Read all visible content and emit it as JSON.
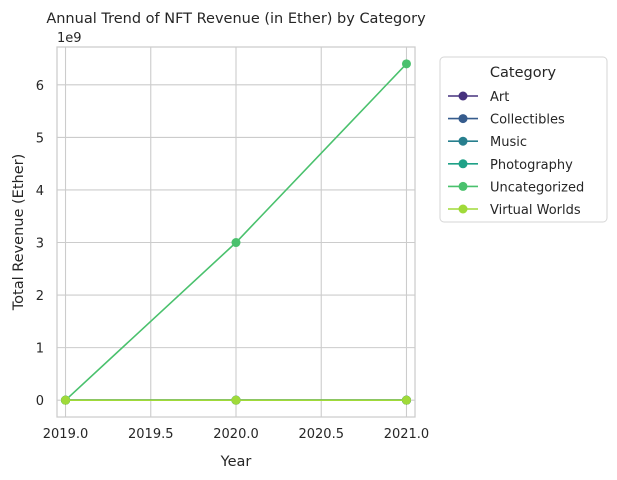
{
  "chart_data": {
    "type": "line",
    "title": "Annual Trend of NFT Revenue (in Ether) by Category",
    "xlabel": "Year",
    "ylabel": "Total Revenue (Ether)",
    "y_offset_label": "1e9",
    "y_multiplier": 1000000000,
    "x": [
      2019,
      2020,
      2021
    ],
    "xlim": [
      2018.95,
      2021.05
    ],
    "ylim": [
      -320000000,
      6720000000
    ],
    "x_ticks": [
      2019.0,
      2019.5,
      2020.0,
      2020.5,
      2021.0
    ],
    "x_tick_labels": [
      "2019.0",
      "2019.5",
      "2020.0",
      "2020.5",
      "2021.0"
    ],
    "y_ticks": [
      0,
      1000000000,
      2000000000,
      3000000000,
      4000000000,
      5000000000,
      6000000000
    ],
    "y_tick_labels": [
      "0",
      "1",
      "2",
      "3",
      "4",
      "5",
      "6"
    ],
    "grid": true,
    "legend_title": "Category",
    "legend_position": "outside-right",
    "series": [
      {
        "name": "Art",
        "color": "#46327e",
        "values": [
          0,
          0,
          0
        ]
      },
      {
        "name": "Collectibles",
        "color": "#365c8d",
        "values": [
          0,
          0,
          0
        ]
      },
      {
        "name": "Music",
        "color": "#277f8e",
        "values": [
          0,
          0,
          0
        ]
      },
      {
        "name": "Photography",
        "color": "#1fa187",
        "values": [
          0,
          0,
          0
        ]
      },
      {
        "name": "Uncategorized",
        "color": "#4ac16d",
        "values": [
          0,
          3000000000,
          6400000000
        ]
      },
      {
        "name": "Virtual Worlds",
        "color": "#a0da39",
        "values": [
          0,
          0,
          0
        ]
      }
    ]
  }
}
